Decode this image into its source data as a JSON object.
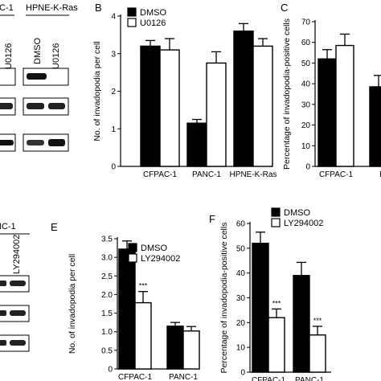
{
  "panels": {
    "B": "B",
    "C": "C",
    "E": "E",
    "F": "F"
  },
  "blot_top": {
    "cropped_header": "C-1",
    "cropped_lane": "U0126",
    "group_label": "HPNE-K-Ras",
    "lanes": [
      "DMSO",
      "U0126"
    ]
  },
  "blot_bottom": {
    "cropped_header": "NC-1",
    "lanes": [
      "LY294002"
    ]
  },
  "colors": {
    "dmso": "#000000",
    "inhibitor": "#ffffff",
    "axis": "#000000",
    "band": "#1a1a1a"
  },
  "chart_data": [
    {
      "panel": "B",
      "type": "bar",
      "categories": [
        "CFPAC-1",
        "PANC-1",
        "HPNE-K-Ras"
      ],
      "series": [
        {
          "name": "DMSO",
          "values": [
            3.2,
            1.15,
            3.6
          ],
          "errors": [
            0.15,
            0.1,
            0.2
          ]
        },
        {
          "name": "U0126",
          "values": [
            3.1,
            2.75,
            3.2
          ],
          "errors": [
            0.3,
            0.3,
            0.2
          ]
        }
      ],
      "ylabel": "No. of invadopodia per cell",
      "ylim": [
        0,
        4
      ],
      "ticks": [
        "0",
        "1",
        "2",
        "3",
        "4"
      ],
      "significance": [
        "",
        "",
        ""
      ],
      "legend": "top-left"
    },
    {
      "panel": "C",
      "type": "bar",
      "categories": [
        "CFPAC-1",
        "PAN"
      ],
      "series": [
        {
          "name": "DMSO",
          "values": [
            52,
            38.5
          ],
          "errors": [
            4.5,
            5.5
          ]
        },
        {
          "name": "U0126",
          "values": [
            58.5,
            null
          ],
          "errors": [
            5.5,
            null
          ]
        }
      ],
      "ylabel": "Percentage of invadopodia-positive cells",
      "ylim": [
        0,
        70
      ],
      "ticks": [
        "0",
        "10",
        "20",
        "30",
        "40",
        "50",
        "60",
        "70"
      ],
      "significance": [
        "",
        ""
      ]
    },
    {
      "panel": "E",
      "type": "bar",
      "categories": [
        "CFPAC-1",
        "PANC-1"
      ],
      "series": [
        {
          "name": "DMSO",
          "values": [
            3.22,
            1.15
          ],
          "errors": [
            0.22,
            0.1
          ]
        },
        {
          "name": "LY294002",
          "values": [
            1.78,
            1.02
          ],
          "errors": [
            0.3,
            0.12
          ]
        }
      ],
      "ylabel": "No. of invadopodia per cell",
      "ylim": [
        0,
        3.5
      ],
      "ticks": [
        "0",
        "0.5",
        "1.0",
        "1.5",
        "2.0",
        "2.5",
        "3.0",
        "3.5"
      ],
      "significance": [
        "***",
        ""
      ],
      "legend": "top-right"
    },
    {
      "panel": "F",
      "type": "bar",
      "categories": [
        "CFPAC-1",
        "PANC-1"
      ],
      "series": [
        {
          "name": "DMSO",
          "values": [
            52,
            39
          ],
          "errors": [
            4.5,
            5.3
          ]
        },
        {
          "name": "LY294002",
          "values": [
            22,
            15
          ],
          "errors": [
            3.5,
            3.5
          ]
        }
      ],
      "ylabel": "Percentage of invadopodia-positive cells",
      "ylim": [
        0,
        60
      ],
      "ticks": [
        "0",
        "10",
        "20",
        "30",
        "40",
        "50",
        "60"
      ],
      "significance": [
        "***",
        "***"
      ],
      "legend": "top-left"
    }
  ]
}
